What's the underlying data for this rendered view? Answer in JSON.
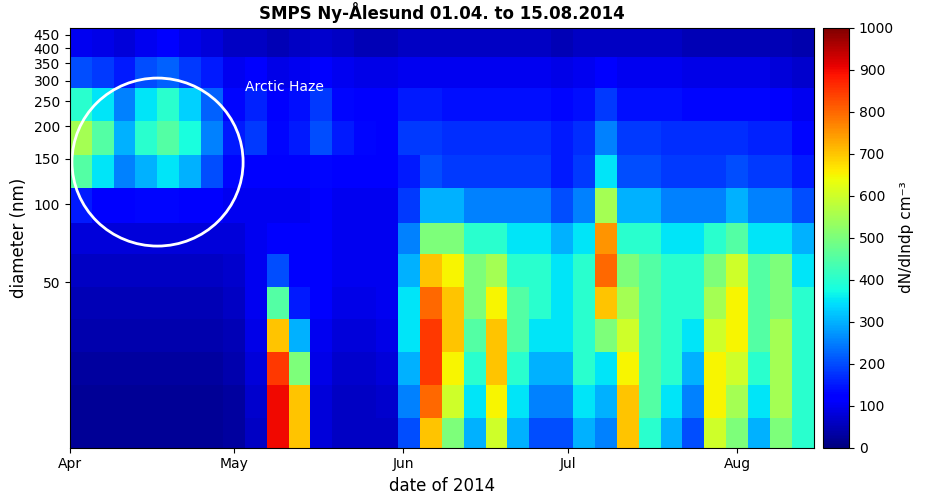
{
  "chart_data": {
    "type": "heatmap",
    "title": "SMPS Ny-Ålesund 01.04. to 15.08.2014",
    "x_label": "date of 2014",
    "y_label": "diameter (nm)",
    "color": "jet",
    "log": "y",
    "xlim": [
      91,
      227
    ],
    "xticks": [
      {
        "value": 91,
        "label": "Apr"
      },
      {
        "value": 121,
        "label": "May"
      },
      {
        "value": 152,
        "label": "Jun"
      },
      {
        "value": 182,
        "label": "Jul"
      },
      {
        "value": 213,
        "label": "Aug"
      }
    ],
    "ylim": [
      11.5,
      480
    ],
    "yticks": [
      50,
      100,
      150,
      200,
      250,
      300,
      350,
      400,
      450
    ],
    "x_edges": [
      91,
      95,
      99,
      103,
      107,
      111,
      115,
      119,
      123,
      127,
      131,
      135,
      139,
      143,
      147,
      151,
      155,
      159,
      163,
      167,
      171,
      175,
      179,
      183,
      187,
      191,
      195,
      199,
      203,
      207,
      211,
      215,
      219,
      223,
      227
    ],
    "y_edges": [
      11.5,
      15,
      20,
      27,
      36,
      48,
      64,
      85,
      115,
      155,
      210,
      280,
      370,
      480
    ],
    "cells": [
      [
        20,
        20,
        20,
        20,
        20,
        20,
        20,
        30,
        60,
        900,
        700,
        80,
        60,
        60,
        60,
        200,
        700,
        500,
        300,
        600,
        300,
        200,
        200,
        300,
        250,
        700,
        400,
        300,
        200,
        600,
        500,
        300,
        500,
        400
      ],
      [
        20,
        20,
        20,
        20,
        20,
        20,
        20,
        30,
        70,
        900,
        700,
        80,
        60,
        60,
        70,
        250,
        800,
        600,
        350,
        650,
        350,
        250,
        250,
        350,
        300,
        700,
        450,
        350,
        250,
        650,
        550,
        350,
        550,
        400
      ],
      [
        30,
        30,
        30,
        30,
        30,
        30,
        30,
        40,
        80,
        850,
        500,
        90,
        70,
        70,
        80,
        300,
        850,
        650,
        400,
        700,
        400,
        300,
        300,
        400,
        350,
        650,
        450,
        400,
        300,
        650,
        600,
        400,
        550,
        400
      ],
      [
        40,
        40,
        40,
        40,
        40,
        40,
        40,
        50,
        90,
        700,
        300,
        100,
        80,
        80,
        90,
        350,
        850,
        700,
        450,
        700,
        450,
        350,
        350,
        400,
        500,
        600,
        450,
        400,
        350,
        600,
        650,
        450,
        550,
        400
      ],
      [
        50,
        50,
        50,
        50,
        50,
        50,
        50,
        60,
        100,
        450,
        150,
        110,
        90,
        90,
        100,
        350,
        800,
        700,
        500,
        650,
        450,
        400,
        350,
        400,
        700,
        550,
        450,
        400,
        400,
        550,
        650,
        450,
        500,
        400
      ],
      [
        60,
        60,
        60,
        60,
        60,
        60,
        60,
        70,
        100,
        200,
        120,
        110,
        100,
        100,
        100,
        300,
        700,
        650,
        500,
        550,
        400,
        400,
        350,
        400,
        800,
        500,
        450,
        400,
        400,
        500,
        600,
        450,
        500,
        350
      ],
      [
        80,
        80,
        80,
        80,
        80,
        80,
        80,
        80,
        100,
        120,
        110,
        110,
        100,
        100,
        100,
        250,
        500,
        500,
        400,
        400,
        350,
        350,
        300,
        350,
        750,
        400,
        400,
        350,
        350,
        400,
        450,
        350,
        350,
        300
      ],
      [
        150,
        120,
        120,
        130,
        130,
        120,
        110,
        100,
        100,
        100,
        100,
        110,
        100,
        100,
        100,
        180,
        300,
        300,
        250,
        250,
        250,
        250,
        200,
        250,
        550,
        300,
        300,
        250,
        250,
        250,
        300,
        250,
        250,
        200
      ],
      [
        450,
        350,
        250,
        300,
        350,
        300,
        200,
        130,
        120,
        110,
        110,
        130,
        120,
        110,
        110,
        150,
        200,
        180,
        180,
        180,
        180,
        180,
        150,
        180,
        350,
        200,
        200,
        180,
        180,
        180,
        200,
        180,
        180,
        150
      ],
      [
        550,
        450,
        300,
        400,
        450,
        380,
        250,
        150,
        180,
        130,
        150,
        200,
        150,
        130,
        120,
        180,
        180,
        170,
        170,
        170,
        170,
        170,
        150,
        170,
        250,
        180,
        180,
        170,
        170,
        170,
        170,
        160,
        160,
        130
      ],
      [
        400,
        350,
        250,
        350,
        400,
        330,
        220,
        130,
        160,
        120,
        140,
        180,
        130,
        120,
        110,
        150,
        150,
        140,
        140,
        140,
        140,
        140,
        130,
        140,
        180,
        140,
        140,
        140,
        130,
        130,
        130,
        130,
        120,
        100
      ],
      [
        200,
        180,
        150,
        200,
        220,
        180,
        150,
        100,
        110,
        90,
        100,
        120,
        100,
        90,
        90,
        100,
        100,
        100,
        100,
        100,
        100,
        100,
        90,
        100,
        110,
        100,
        100,
        100,
        90,
        90,
        90,
        90,
        80,
        70
      ],
      [
        100,
        90,
        80,
        100,
        110,
        90,
        80,
        60,
        60,
        50,
        60,
        70,
        60,
        50,
        50,
        60,
        60,
        60,
        60,
        60,
        60,
        60,
        50,
        60,
        60,
        60,
        60,
        60,
        50,
        50,
        50,
        50,
        50,
        40
      ]
    ],
    "colorbar": {
      "label": "dN/dlndp cm⁻³",
      "range": [
        0,
        1000
      ],
      "ticks": [
        0,
        100,
        200,
        300,
        400,
        500,
        600,
        700,
        800,
        900,
        1000
      ]
    },
    "annotations": [
      {
        "text": "Arctic Haze"
      }
    ]
  }
}
